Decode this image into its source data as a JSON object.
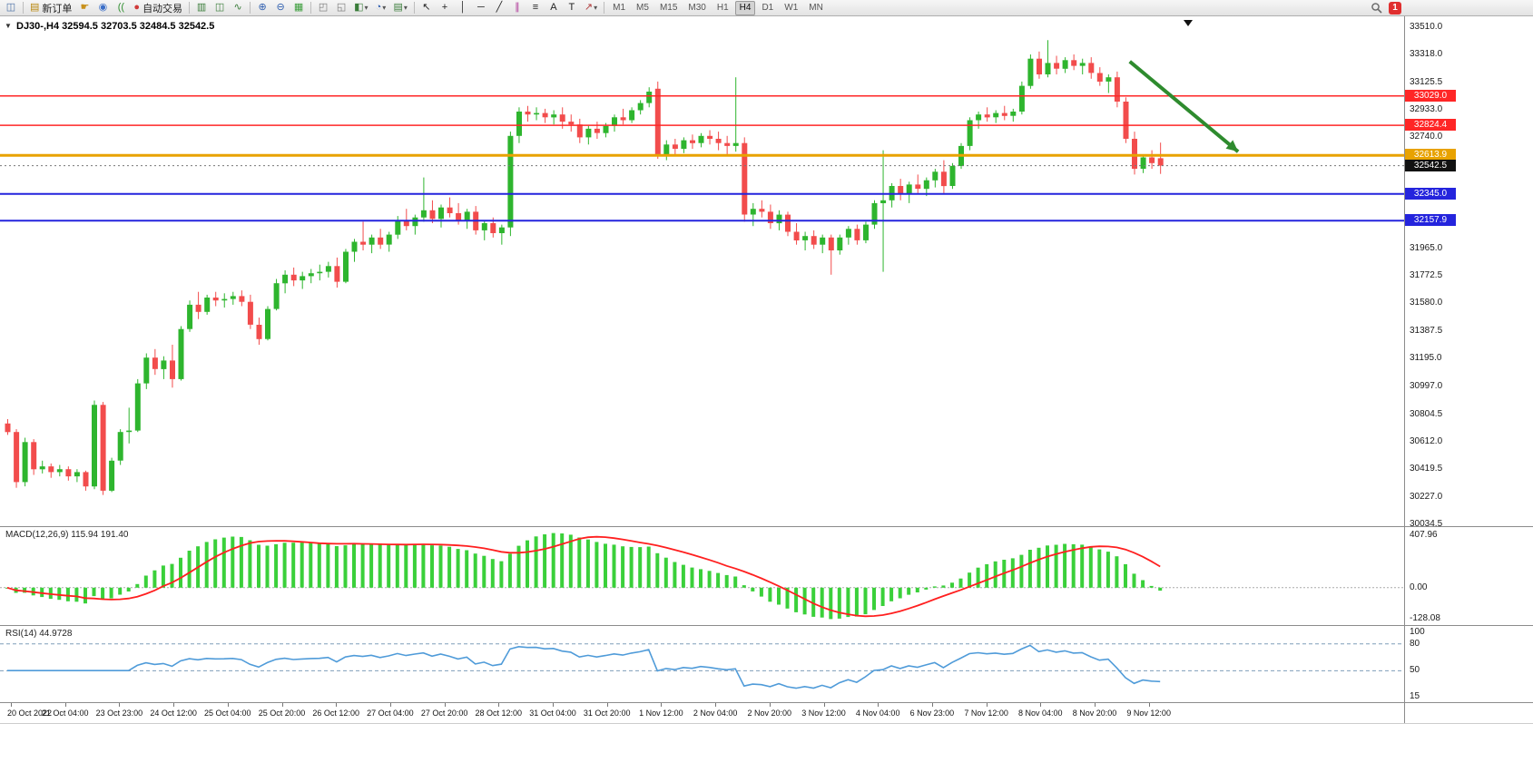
{
  "icons": {
    "collapse": "▼"
  },
  "chart": {
    "title": "DJ30-,H4  32594.5 32703.5 32484.5 32542.5",
    "symbol": "DJ30-",
    "period": "H4",
    "open": "32594.5",
    "high": "32703.5",
    "low": "32484.5",
    "close": "32542.5"
  },
  "toolbar": {
    "badge_count": "1",
    "groups": [
      {
        "name": "file-group",
        "items": [
          {
            "name": "new-chart-window-button",
            "icon": "chart-window-icon",
            "glyph": "◫",
            "color": "#4a6fa5"
          }
        ]
      },
      {
        "name": "trade-group",
        "items": [
          {
            "name": "new-order-button",
            "icon": "order-form-icon",
            "glyph": "▤",
            "color": "#b8860b",
            "label": "新订单"
          },
          {
            "name": "drag-trade-button",
            "icon": "hand-icon",
            "glyph": "☛",
            "color": "#c8901a"
          },
          {
            "name": "depth-of-market-button",
            "icon": "person-icon",
            "glyph": "◉",
            "color": "#3c6fc8"
          },
          {
            "name": "alerts-button",
            "icon": "sound-icon",
            "glyph": "((",
            "color": "#2f8f2f"
          },
          {
            "name": "autotrading-button",
            "icon": "autotrade-icon",
            "glyph": "●",
            "color": "#d03a3a",
            "label": "自动交易"
          }
        ]
      },
      {
        "name": "chart-type-group",
        "items": [
          {
            "name": "bar-chart-button",
            "icon": "bars-icon",
            "glyph": "▥",
            "color": "#3a7d3a"
          },
          {
            "name": "candlestick-chart-button",
            "icon": "candles-icon",
            "glyph": "◫",
            "color": "#3a7d3a"
          },
          {
            "name": "line-chart-button",
            "icon": "line-icon",
            "glyph": "∿",
            "color": "#3a7d3a"
          }
        ]
      },
      {
        "name": "zoom-group",
        "items": [
          {
            "name": "zoom-in-button",
            "icon": "zoom-in-icon",
            "glyph": "⊕",
            "color": "#2f5fb0"
          },
          {
            "name": "zoom-out-button",
            "icon": "zoom-out-icon",
            "glyph": "⊖",
            "color": "#2f5fb0"
          },
          {
            "name": "auto-arrange-button",
            "icon": "grid-icon",
            "glyph": "▦",
            "color": "#3a9d3a"
          }
        ]
      },
      {
        "name": "window-group",
        "items": [
          {
            "name": "tile-windows-button",
            "icon": "tile-icon",
            "glyph": "◰",
            "color": "#777777"
          },
          {
            "name": "cascade-windows-button",
            "icon": "cascade-icon",
            "glyph": "◱",
            "color": "#777777"
          },
          {
            "name": "new-chart-dropdown",
            "icon": "new-chart-icon",
            "glyph": "◧",
            "color": "#3a7d3a",
            "dropdown": true
          },
          {
            "name": "profiles-dropdown",
            "icon": "profiles-icon",
            "glyph": "◔",
            "color": "#2f5fb0",
            "dropdown": true
          },
          {
            "name": "indicators-dropdown",
            "icon": "indicator-icon",
            "glyph": "▤",
            "color": "#3a7d3a",
            "dropdown": true
          }
        ]
      },
      {
        "name": "objects-group",
        "items": [
          {
            "name": "cursor-button",
            "icon": "cursor-icon",
            "glyph": "↖",
            "color": "#222222"
          },
          {
            "name": "crosshair-button",
            "icon": "crosshair-icon",
            "glyph": "+",
            "color": "#222222"
          },
          {
            "name": "vertical-line-button",
            "icon": "vline-icon",
            "glyph": "│",
            "color": "#222222"
          },
          {
            "name": "horizontal-line-button",
            "icon": "hline-icon",
            "glyph": "─",
            "color": "#222222"
          },
          {
            "name": "trendline-button",
            "icon": "trendline-icon",
            "glyph": "╱",
            "color": "#222222"
          },
          {
            "name": "channel-button",
            "icon": "channel-icon",
            "glyph": "∥",
            "color": "#b03a9a"
          },
          {
            "name": "fibonacci-button",
            "icon": "fibonacci-icon",
            "glyph": "≡",
            "color": "#222222"
          },
          {
            "name": "text-button",
            "icon": "text-icon",
            "glyph": "A",
            "color": "#222222"
          },
          {
            "name": "label-button",
            "icon": "label-icon",
            "glyph": "T",
            "color": "#222222"
          },
          {
            "name": "shapes-dropdown",
            "icon": "arrow-object-icon",
            "glyph": "↗",
            "color": "#b03a3a",
            "dropdown": true
          }
        ]
      },
      {
        "name": "timeframe-group",
        "items": [
          {
            "name": "timeframe-m1-button",
            "text": "M1"
          },
          {
            "name": "timeframe-m5-button",
            "text": "M5"
          },
          {
            "name": "timeframe-m15-button",
            "text": "M15"
          },
          {
            "name": "timeframe-m30-button",
            "text": "M30"
          },
          {
            "name": "timeframe-h1-button",
            "text": "H1"
          },
          {
            "name": "timeframe-h4-button",
            "text": "H4",
            "active": true
          },
          {
            "name": "timeframe-d1-button",
            "text": "D1"
          },
          {
            "name": "timeframe-w1-button",
            "text": "W1"
          },
          {
            "name": "timeframe-mn-button",
            "text": "MN"
          }
        ]
      }
    ]
  },
  "chart_data": {
    "type": "candlestick",
    "symbol": "DJ30-",
    "timeframe": "H4",
    "colors": {
      "up": "#2eb52e",
      "down": "#f24c4c"
    },
    "price_axis": {
      "max": 33510.0,
      "min": 30034.5,
      "labels": [
        "33510.0",
        "33318.0",
        "33125.5",
        "32933.0",
        "32740.0",
        "32548.0",
        "32355.5",
        "32163.0",
        "31965.0",
        "31772.5",
        "31580.0",
        "31387.5",
        "31195.0",
        "30997.0",
        "30804.5",
        "30612.0",
        "30419.5",
        "30227.0",
        "30034.5"
      ]
    },
    "hlines": [
      {
        "price": 33029.0,
        "color": "#ff2626",
        "width": 1.5
      },
      {
        "price": 32824.4,
        "color": "#ff2626",
        "width": 1.5
      },
      {
        "price": 32613.9,
        "color": "#e8a200",
        "width": 3
      },
      {
        "price": 32542.5,
        "color": "#777777",
        "width": 1,
        "dash": "2,3"
      },
      {
        "price": 32345.0,
        "color": "#2424dd",
        "width": 2
      },
      {
        "price": 32157.9,
        "color": "#2424dd",
        "width": 2
      }
    ],
    "price_tags": [
      {
        "value": "33029.0",
        "price": 33029.0,
        "bg": "#ff2626",
        "fg": "#ffffff"
      },
      {
        "value": "32824.4",
        "price": 32824.4,
        "bg": "#ff2626",
        "fg": "#ffffff"
      },
      {
        "value": "32613.9",
        "price": 32613.9,
        "bg": "#e8a200",
        "fg": "#ffffff"
      },
      {
        "value": "32542.5",
        "price": 32542.5,
        "bg": "#111111",
        "fg": "#ffffff"
      },
      {
        "value": "32345.0",
        "price": 32345.0,
        "bg": "#2424dd",
        "fg": "#ffffff"
      },
      {
        "value": "32157.9",
        "price": 32157.9,
        "bg": "#2424dd",
        "fg": "#ffffff"
      }
    ],
    "trend_arrow": {
      "bar1": 129.5,
      "price1": 33270,
      "bar2": 142,
      "price2": 32640,
      "color": "#2e8b2e"
    },
    "time_labels": [
      "20 Oct 2022",
      "21 Oct 04:00",
      "23 Oct 23:00",
      "24 Oct 12:00",
      "25 Oct 04:00",
      "25 Oct 20:00",
      "26 Oct 12:00",
      "27 Oct 04:00",
      "27 Oct 20:00",
      "28 Oct 12:00",
      "31 Oct 04:00",
      "31 Oct 20:00",
      "1 Nov 12:00",
      "2 Nov 04:00",
      "2 Nov 20:00",
      "3 Nov 12:00",
      "4 Nov 04:00",
      "6 Nov 23:00",
      "7 Nov 12:00",
      "8 Nov 04:00",
      "8 Nov 20:00",
      "9 Nov 12:00"
    ],
    "macd": {
      "label": "MACD(12,26,9) 115.94 191.40",
      "params": [
        12,
        26,
        9
      ],
      "macd_value": 115.94,
      "signal_value": 191.4,
      "axis_labels": [
        "407.96",
        "0.00",
        "-128.08"
      ],
      "histogram_color": "#3ad03a",
      "signal_color": "#ff1f1f"
    },
    "rsi": {
      "label": "RSI(14) 44.9728",
      "period": 14,
      "value": 44.9728,
      "axis_labels": [
        "100",
        "80",
        "50",
        "15"
      ],
      "levels": [
        80,
        50
      ],
      "scale_max": 100,
      "scale_min": 15,
      "line_color": "#4f9bd9"
    },
    "candles": [
      [
        30740,
        30770,
        30660,
        30680
      ],
      [
        30680,
        30700,
        30290,
        30330
      ],
      [
        30330,
        30640,
        30300,
        30610
      ],
      [
        30610,
        30630,
        30380,
        30420
      ],
      [
        30420,
        30480,
        30390,
        30440
      ],
      [
        30440,
        30460,
        30360,
        30400
      ],
      [
        30400,
        30450,
        30370,
        30420
      ],
      [
        30420,
        30440,
        30340,
        30370
      ],
      [
        30370,
        30420,
        30330,
        30400
      ],
      [
        30400,
        30410,
        30270,
        30300
      ],
      [
        30300,
        30900,
        30280,
        30870
      ],
      [
        30870,
        30890,
        30240,
        30270
      ],
      [
        30270,
        30500,
        30260,
        30480
      ],
      [
        30480,
        30700,
        30450,
        30680
      ],
      [
        30680,
        30850,
        30600,
        30690
      ],
      [
        30690,
        31050,
        30680,
        31020
      ],
      [
        31020,
        31230,
        30980,
        31200
      ],
      [
        31200,
        31260,
        31080,
        31120
      ],
      [
        31120,
        31210,
        31050,
        31180
      ],
      [
        31180,
        31290,
        30990,
        31050
      ],
      [
        31050,
        31420,
        31040,
        31400
      ],
      [
        31400,
        31600,
        31380,
        31570
      ],
      [
        31570,
        31660,
        31470,
        31520
      ],
      [
        31520,
        31640,
        31500,
        31620
      ],
      [
        31620,
        31660,
        31560,
        31600
      ],
      [
        31600,
        31650,
        31550,
        31610
      ],
      [
        31610,
        31660,
        31570,
        31630
      ],
      [
        31630,
        31670,
        31560,
        31590
      ],
      [
        31590,
        31640,
        31400,
        31430
      ],
      [
        31430,
        31480,
        31290,
        31330
      ],
      [
        31330,
        31560,
        31320,
        31540
      ],
      [
        31540,
        31750,
        31530,
        31720
      ],
      [
        31720,
        31810,
        31650,
        31780
      ],
      [
        31780,
        31830,
        31700,
        31740
      ],
      [
        31740,
        31800,
        31680,
        31770
      ],
      [
        31770,
        31820,
        31720,
        31790
      ],
      [
        31790,
        31850,
        31740,
        31800
      ],
      [
        31800,
        31870,
        31760,
        31840
      ],
      [
        31840,
        31900,
        31690,
        31730
      ],
      [
        31730,
        31960,
        31720,
        31940
      ],
      [
        31940,
        32030,
        31870,
        32010
      ],
      [
        32010,
        32150,
        31950,
        31990
      ],
      [
        31990,
        32060,
        31930,
        32040
      ],
      [
        32040,
        32100,
        31960,
        31990
      ],
      [
        31990,
        32080,
        31940,
        32060
      ],
      [
        32060,
        32190,
        32030,
        32160
      ],
      [
        32160,
        32240,
        32090,
        32120
      ],
      [
        32120,
        32200,
        32060,
        32180
      ],
      [
        32180,
        32460,
        32150,
        32230
      ],
      [
        32230,
        32300,
        32140,
        32170
      ],
      [
        32170,
        32270,
        32110,
        32250
      ],
      [
        32250,
        32320,
        32180,
        32210
      ],
      [
        32210,
        32280,
        32130,
        32160
      ],
      [
        32160,
        32240,
        32100,
        32220
      ],
      [
        32220,
        32260,
        32060,
        32090
      ],
      [
        32090,
        32160,
        32020,
        32140
      ],
      [
        32140,
        32180,
        32040,
        32070
      ],
      [
        32070,
        32130,
        31990,
        32110
      ],
      [
        32110,
        32780,
        32050,
        32750
      ],
      [
        32750,
        32950,
        32700,
        32920
      ],
      [
        32920,
        32960,
        32850,
        32900
      ],
      [
        32900,
        32950,
        32860,
        32910
      ],
      [
        32910,
        32940,
        32840,
        32880
      ],
      [
        32880,
        32930,
        32830,
        32900
      ],
      [
        32900,
        32950,
        32800,
        32850
      ],
      [
        32850,
        32900,
        32780,
        32830
      ],
      [
        32830,
        32870,
        32700,
        32740
      ],
      [
        32740,
        32820,
        32690,
        32800
      ],
      [
        32800,
        32850,
        32730,
        32770
      ],
      [
        32770,
        32840,
        32740,
        32820
      ],
      [
        32820,
        32900,
        32780,
        32880
      ],
      [
        32880,
        32940,
        32830,
        32860
      ],
      [
        32860,
        32950,
        32840,
        32930
      ],
      [
        32930,
        33000,
        32900,
        32980
      ],
      [
        32980,
        33090,
        32950,
        33060
      ],
      [
        33080,
        33130,
        32590,
        32620
      ],
      [
        32620,
        32720,
        32580,
        32690
      ],
      [
        32690,
        32730,
        32620,
        32660
      ],
      [
        32660,
        32740,
        32630,
        32720
      ],
      [
        32720,
        32760,
        32660,
        32700
      ],
      [
        32700,
        32770,
        32670,
        32750
      ],
      [
        32750,
        32790,
        32690,
        32730
      ],
      [
        32730,
        32780,
        32650,
        32700
      ],
      [
        32700,
        32750,
        32620,
        32680
      ],
      [
        32680,
        33160,
        32640,
        32700
      ],
      [
        32700,
        32740,
        32150,
        32200
      ],
      [
        32200,
        32280,
        32120,
        32240
      ],
      [
        32240,
        32300,
        32180,
        32220
      ],
      [
        32220,
        32270,
        32100,
        32140
      ],
      [
        32140,
        32230,
        32090,
        32200
      ],
      [
        32200,
        32220,
        32050,
        32080
      ],
      [
        32080,
        32140,
        31990,
        32020
      ],
      [
        32020,
        32080,
        31950,
        32050
      ],
      [
        32050,
        32090,
        31960,
        31990
      ],
      [
        31990,
        32060,
        31930,
        32040
      ],
      [
        32040,
        32060,
        31780,
        31950
      ],
      [
        31950,
        32060,
        31920,
        32040
      ],
      [
        32040,
        32120,
        31990,
        32100
      ],
      [
        32100,
        32130,
        31990,
        32020
      ],
      [
        32020,
        32150,
        32000,
        32130
      ],
      [
        32130,
        32300,
        32100,
        32280
      ],
      [
        32280,
        32650,
        31800,
        32300
      ],
      [
        32300,
        32420,
        32250,
        32400
      ],
      [
        32400,
        32450,
        32300,
        32340
      ],
      [
        32340,
        32430,
        32280,
        32410
      ],
      [
        32410,
        32480,
        32350,
        32380
      ],
      [
        32380,
        32460,
        32330,
        32440
      ],
      [
        32440,
        32520,
        32390,
        32500
      ],
      [
        32500,
        32580,
        32350,
        32400
      ],
      [
        32400,
        32560,
        32380,
        32540
      ],
      [
        32540,
        32700,
        32520,
        32680
      ],
      [
        32680,
        32880,
        32650,
        32860
      ],
      [
        32860,
        32920,
        32800,
        32900
      ],
      [
        32900,
        32950,
        32850,
        32880
      ],
      [
        32880,
        32930,
        32840,
        32910
      ],
      [
        32910,
        32960,
        32860,
        32890
      ],
      [
        32890,
        32940,
        32850,
        32920
      ],
      [
        32920,
        33130,
        32900,
        33100
      ],
      [
        33100,
        33320,
        33080,
        33290
      ],
      [
        33290,
        33340,
        33150,
        33180
      ],
      [
        33180,
        33420,
        33160,
        33260
      ],
      [
        33260,
        33310,
        33180,
        33220
      ],
      [
        33220,
        33300,
        33190,
        33280
      ],
      [
        33280,
        33320,
        33210,
        33240
      ],
      [
        33240,
        33290,
        33180,
        33260
      ],
      [
        33260,
        33300,
        33150,
        33190
      ],
      [
        33190,
        33230,
        33100,
        33130
      ],
      [
        33130,
        33180,
        33050,
        33160
      ],
      [
        33160,
        33200,
        32950,
        32990
      ],
      [
        32990,
        33020,
        32700,
        32730
      ],
      [
        32730,
        32780,
        32480,
        32520
      ],
      [
        32520,
        32620,
        32490,
        32600
      ],
      [
        32600,
        32650,
        32520,
        32560
      ],
      [
        32594.5,
        32703.5,
        32484.5,
        32542.5
      ]
    ]
  }
}
